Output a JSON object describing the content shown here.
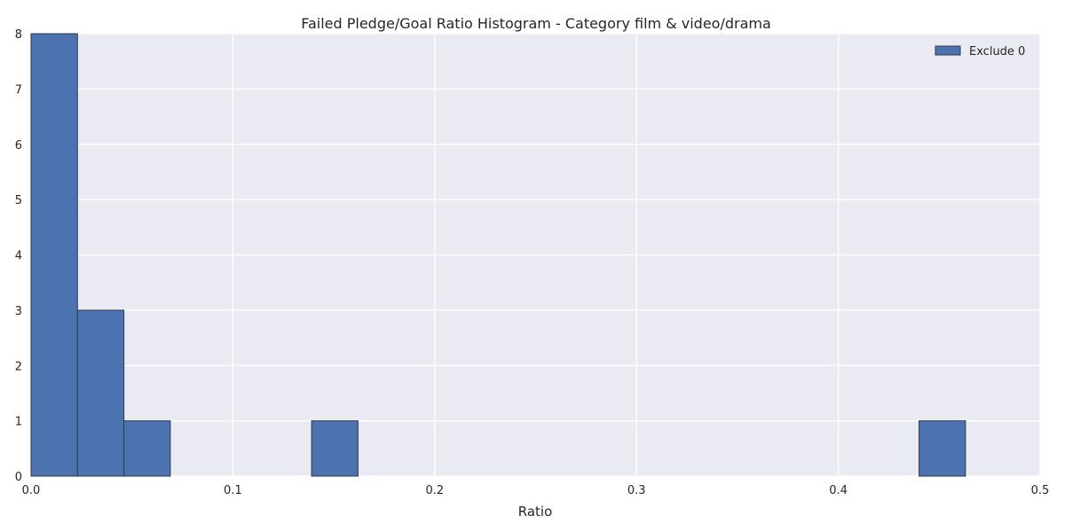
{
  "chart_data": {
    "type": "bar",
    "title": "Failed Pledge/Goal Ratio Histogram - Category film & video/drama",
    "xlabel": "Ratio",
    "ylabel": "",
    "xlim": [
      0.0,
      0.5
    ],
    "ylim": [
      0,
      8
    ],
    "xticks": [
      "0.0",
      "0.1",
      "0.2",
      "0.3",
      "0.4",
      "0.5"
    ],
    "yticks": [
      "0",
      "1",
      "2",
      "3",
      "4",
      "5",
      "6",
      "7",
      "8"
    ],
    "grid": true,
    "legend_position": "top-right",
    "series": [
      {
        "name": "Exclude 0",
        "color": "#4c72b0",
        "bins": [
          {
            "start": 0.0,
            "end": 0.023,
            "count": 8
          },
          {
            "start": 0.023,
            "end": 0.046,
            "count": 3
          },
          {
            "start": 0.046,
            "end": 0.069,
            "count": 1
          },
          {
            "start": 0.139,
            "end": 0.162,
            "count": 1
          },
          {
            "start": 0.44,
            "end": 0.463,
            "count": 1
          }
        ]
      }
    ],
    "colors": {
      "plot_background": "#eaeaf2",
      "grid": "#ffffff",
      "bar_edge": "#2e3a4c"
    }
  }
}
